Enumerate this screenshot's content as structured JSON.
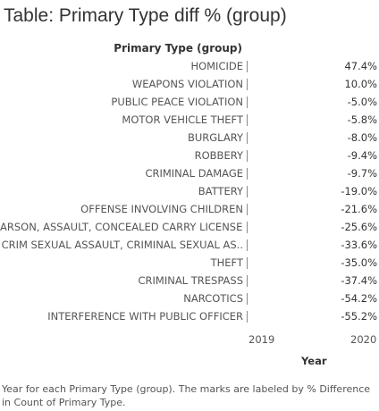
{
  "title": "Table: Primary Type diff % (group)",
  "row_header": "Primary Type (group)",
  "columns": [
    "2019",
    "2020"
  ],
  "column_axis_title": "Year",
  "caption": "Year for each Primary Type (group).  The marks are labeled by % Difference in Count of Primary Type.",
  "rows": [
    {
      "label": "HOMICIDE",
      "value": "47.4%"
    },
    {
      "label": "WEAPONS VIOLATION",
      "value": "10.0%"
    },
    {
      "label": "PUBLIC PEACE VIOLATION",
      "value": "-5.0%"
    },
    {
      "label": "MOTOR VEHICLE THEFT",
      "value": "-5.8%"
    },
    {
      "label": "BURGLARY",
      "value": "-8.0%"
    },
    {
      "label": "ROBBERY",
      "value": "-9.4%"
    },
    {
      "label": "CRIMINAL DAMAGE",
      "value": "-9.7%"
    },
    {
      "label": "BATTERY",
      "value": "-19.0%"
    },
    {
      "label": "OFFENSE INVOLVING CHILDREN",
      "value": "-21.6%"
    },
    {
      "label": "ARSON, ASSAULT, CONCEALED CARRY LICENSE..",
      "value": "-25.6%"
    },
    {
      "label": "CRIM SEXUAL ASSAULT, CRIMINAL SEXUAL AS..",
      "value": "-33.6%"
    },
    {
      "label": "THEFT",
      "value": "-35.0%"
    },
    {
      "label": "CRIMINAL TRESPASS",
      "value": "-37.4%"
    },
    {
      "label": "NARCOTICS",
      "value": "-54.2%"
    },
    {
      "label": "INTERFERENCE WITH PUBLIC OFFICER",
      "value": "-55.2%"
    }
  ]
}
